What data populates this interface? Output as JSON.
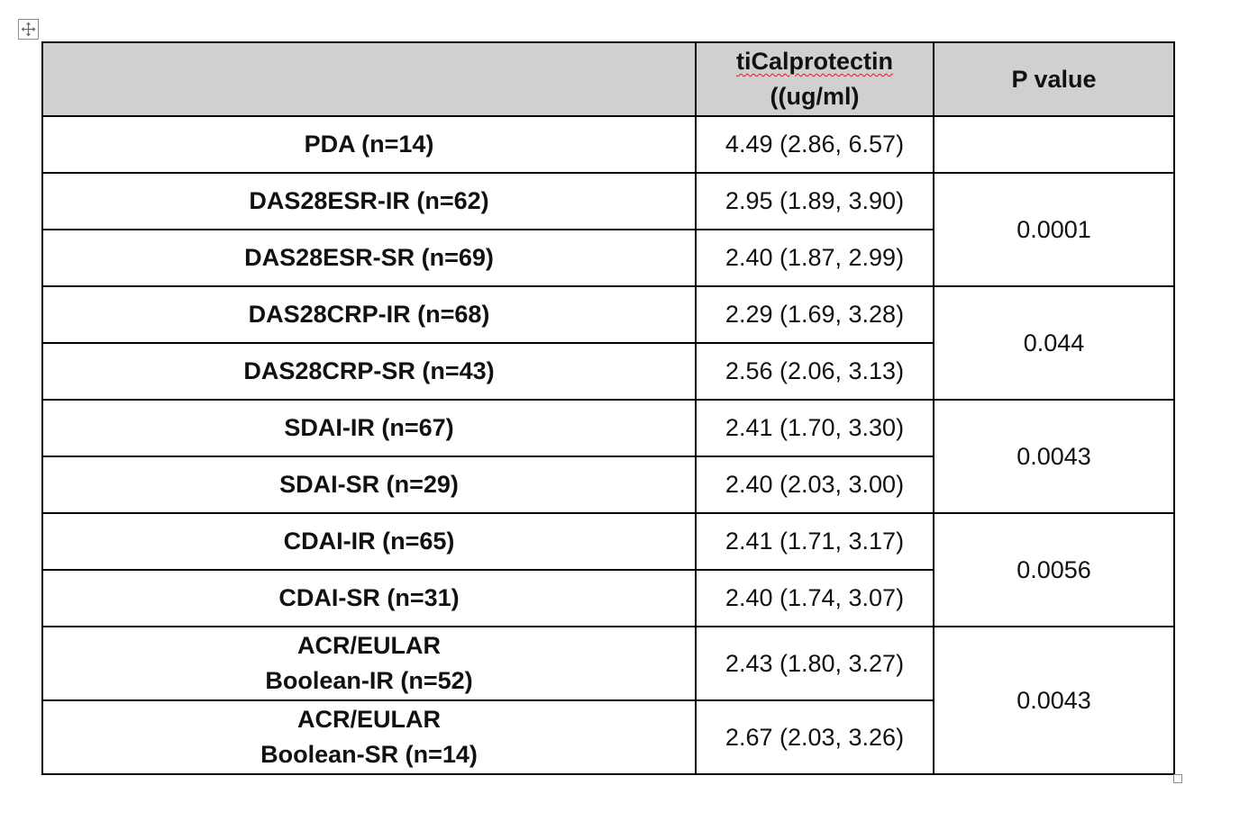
{
  "table": {
    "headers": {
      "group": "",
      "measure_line1": "tiCalprotectin",
      "measure_line2": "((ug/ml)",
      "pvalue": "P value"
    },
    "rows": [
      {
        "group": "PDA (n=14)",
        "value": "4.49 (2.86, 6.57)"
      },
      {
        "group": "DAS28ESR-IR (n=62)",
        "value": "2.95 (1.89, 3.90)"
      },
      {
        "group": "DAS28ESR-SR (n=69)",
        "value": "2.40 (1.87, 2.99)"
      },
      {
        "group": "DAS28CRP-IR (n=68)",
        "value": "2.29 (1.69, 3.28)"
      },
      {
        "group": "DAS28CRP-SR (n=43)",
        "value": "2.56 (2.06, 3.13)"
      },
      {
        "group": "SDAI-IR (n=67)",
        "value": "2.41 (1.70, 3.30)"
      },
      {
        "group": "SDAI-SR (n=29)",
        "value": "2.40 (2.03, 3.00)"
      },
      {
        "group": "CDAI-IR (n=65)",
        "value": "2.41 (1.71, 3.17)"
      },
      {
        "group": "CDAI-SR (n=31)",
        "value": "2.40 (1.74, 3.07)"
      },
      {
        "group_line1": "ACR/EULAR",
        "group_line2": "Boolean-IR (n=52)",
        "value": "2.43 (1.80, 3.27)"
      },
      {
        "group_line1": "ACR/EULAR",
        "group_line2": "Boolean-SR (n=14)",
        "value": "2.67 (2.03, 3.26)"
      }
    ],
    "pvalues": [
      "",
      "0.0001",
      "0.044",
      "0.0043",
      "0.0056",
      "0.0043"
    ]
  },
  "icons": {
    "move_handle": "move-arrows-icon",
    "resize_handle": "resize-square-icon"
  }
}
